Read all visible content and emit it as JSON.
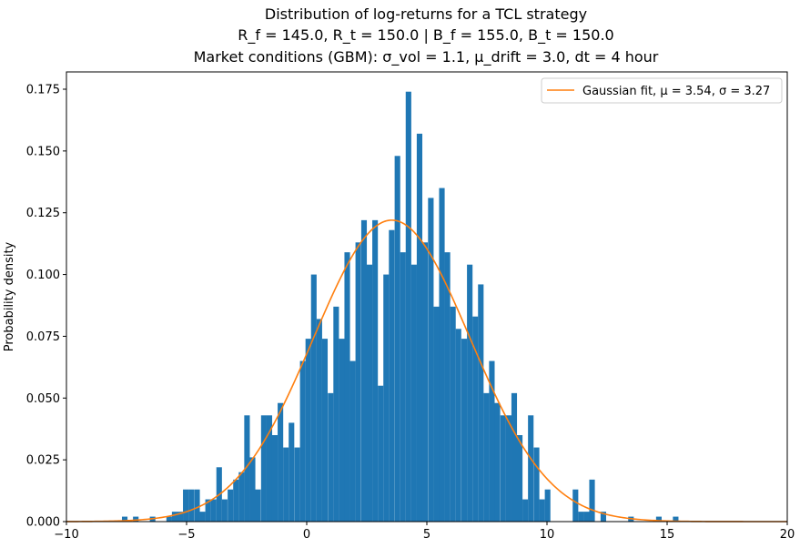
{
  "chart_data": {
    "type": "bar",
    "title_lines": [
      "Distribution of log-returns for a TCL strategy",
      "R_f = 145.0,  R_t = 150.0 | B_f = 155.0,  B_t = 150.0",
      "Market conditions (GBM): σ_vol = 1.1,  μ_drift = 3.0,  dt = 4 hour"
    ],
    "xlabel": "",
    "ylabel": "Probability density",
    "xlim": [
      -10,
      20
    ],
    "ylim": [
      0,
      0.182
    ],
    "x_ticks": [
      -10,
      -5,
      0,
      5,
      10,
      15,
      20
    ],
    "x_tick_labels": [
      "−10",
      "−5",
      "0",
      "5",
      "10",
      "15",
      "20"
    ],
    "y_ticks": [
      0,
      0.025,
      0.05,
      0.075,
      0.1,
      0.125,
      0.15,
      0.175
    ],
    "y_tick_labels": [
      "0.000",
      "0.025",
      "0.050",
      "0.075",
      "0.100",
      "0.125",
      "0.150",
      "0.175"
    ],
    "bar_color": "#1f77b4",
    "fit_color": "#ff7f0e",
    "bin_width": 0.2317,
    "bins": [
      [
        -7.69,
        0.002
      ],
      [
        -7.23,
        0.002
      ],
      [
        -6.53,
        0.002
      ],
      [
        -5.84,
        0.002
      ],
      [
        -5.61,
        0.004
      ],
      [
        -5.38,
        0.004
      ],
      [
        -5.15,
        0.013
      ],
      [
        -4.92,
        0.013
      ],
      [
        -4.68,
        0.013
      ],
      [
        -4.45,
        0.004
      ],
      [
        -4.22,
        0.009
      ],
      [
        -3.99,
        0.009
      ],
      [
        -3.76,
        0.022
      ],
      [
        -3.53,
        0.009
      ],
      [
        -3.29,
        0.013
      ],
      [
        -3.06,
        0.017
      ],
      [
        -2.83,
        0.02
      ],
      [
        -2.6,
        0.043
      ],
      [
        -2.37,
        0.026
      ],
      [
        -2.14,
        0.013
      ],
      [
        -1.9,
        0.043
      ],
      [
        -1.67,
        0.043
      ],
      [
        -1.44,
        0.035
      ],
      [
        -1.21,
        0.048
      ],
      [
        -0.98,
        0.03
      ],
      [
        -0.75,
        0.04
      ],
      [
        -0.51,
        0.03
      ],
      [
        -0.28,
        0.065
      ],
      [
        -0.05,
        0.074
      ],
      [
        0.18,
        0.1
      ],
      [
        0.41,
        0.082
      ],
      [
        0.64,
        0.074
      ],
      [
        0.88,
        0.052
      ],
      [
        1.11,
        0.087
      ],
      [
        1.34,
        0.074
      ],
      [
        1.57,
        0.109
      ],
      [
        1.8,
        0.065
      ],
      [
        2.03,
        0.113
      ],
      [
        2.27,
        0.122
      ],
      [
        2.5,
        0.104
      ],
      [
        2.73,
        0.122
      ],
      [
        2.96,
        0.055
      ],
      [
        3.19,
        0.1
      ],
      [
        3.42,
        0.118
      ],
      [
        3.66,
        0.148
      ],
      [
        3.89,
        0.109
      ],
      [
        4.12,
        0.174
      ],
      [
        4.35,
        0.104
      ],
      [
        4.58,
        0.157
      ],
      [
        4.81,
        0.113
      ],
      [
        5.05,
        0.131
      ],
      [
        5.28,
        0.087
      ],
      [
        5.51,
        0.135
      ],
      [
        5.74,
        0.109
      ],
      [
        5.97,
        0.087
      ],
      [
        6.2,
        0.078
      ],
      [
        6.44,
        0.074
      ],
      [
        6.67,
        0.104
      ],
      [
        6.9,
        0.083
      ],
      [
        7.13,
        0.096
      ],
      [
        7.36,
        0.052
      ],
      [
        7.59,
        0.065
      ],
      [
        7.82,
        0.048
      ],
      [
        8.06,
        0.043
      ],
      [
        8.29,
        0.043
      ],
      [
        8.52,
        0.052
      ],
      [
        8.75,
        0.035
      ],
      [
        8.98,
        0.009
      ],
      [
        9.21,
        0.043
      ],
      [
        9.45,
        0.03
      ],
      [
        9.68,
        0.009
      ],
      [
        9.91,
        0.013
      ],
      [
        11.07,
        0.013
      ],
      [
        11.3,
        0.004
      ],
      [
        11.53,
        0.004
      ],
      [
        11.76,
        0.017
      ],
      [
        12.23,
        0.004
      ],
      [
        13.38,
        0.002
      ],
      [
        14.54,
        0.002
      ],
      [
        15.24,
        0.002
      ]
    ],
    "fit": {
      "mu": 3.54,
      "sigma": 3.27
    },
    "legend": {
      "entries": [
        {
          "label": "Gaussian fit, μ = 3.54, σ = 3.27"
        }
      ],
      "placement": "top-right"
    },
    "grid": false
  }
}
